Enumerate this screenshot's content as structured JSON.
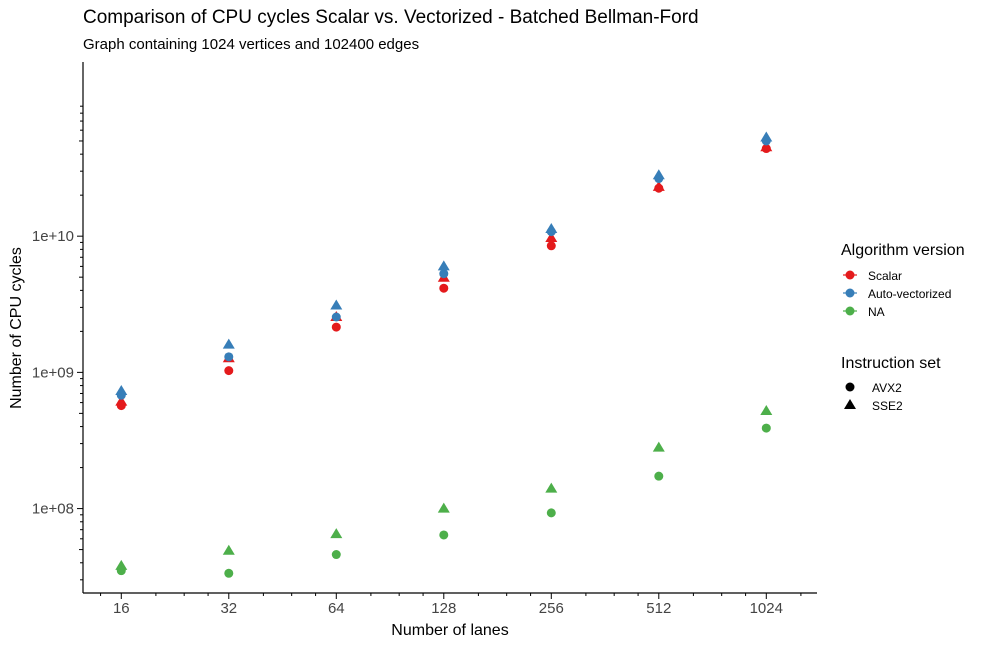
{
  "chart_data": {
    "type": "scatter",
    "title": "Comparison of CPU cycles Scalar vs. Vectorized - Batched Bellman-Ford",
    "subtitle": "Graph containing 1024 vertices and 102400 edges",
    "xlabel": "Number of lanes",
    "ylabel": "Number of CPU cycles",
    "x_scale": "log2",
    "y_scale": "log10",
    "xlim": [
      12.5,
      1420
    ],
    "ylim": [
      24000000,
      190000000000
    ],
    "x_ticks": [
      16,
      32,
      64,
      128,
      256,
      512,
      1024
    ],
    "x_tick_labels": [
      "16",
      "32",
      "64",
      "128",
      "256",
      "512",
      "1024"
    ],
    "y_ticks": [
      100000000,
      1000000000,
      10000000000
    ],
    "y_tick_labels": [
      "1e+08",
      "1e+09",
      "1e+10"
    ],
    "grid": false,
    "legend_position": "right",
    "color_legend": {
      "title": "Algorithm version",
      "entries": [
        {
          "label": "Scalar",
          "color": "#e41a1c"
        },
        {
          "label": "Auto-vectorized",
          "color": "#377eb8"
        },
        {
          "label": "NA",
          "color": "#4daf4a"
        }
      ]
    },
    "shape_legend": {
      "title": "Instruction set",
      "entries": [
        {
          "label": "AVX2",
          "shape": "circle"
        },
        {
          "label": "SSE2",
          "shape": "triangle"
        }
      ]
    },
    "series": [
      {
        "color": "#e41a1c",
        "shape": "circle",
        "x": [
          16,
          32,
          64,
          128,
          256,
          512,
          1024
        ],
        "y": [
          570000000,
          1030000000,
          2150000000,
          4150000000,
          8500000000,
          22500000000,
          44000000000
        ]
      },
      {
        "color": "#e41a1c",
        "shape": "triangle",
        "x": [
          16,
          32,
          64,
          128,
          256,
          512,
          1024
        ],
        "y": [
          610000000,
          1270000000,
          2550000000,
          4950000000,
          9700000000,
          23000000000,
          45000000000
        ]
      },
      {
        "color": "#377eb8",
        "shape": "circle",
        "x": [
          16,
          32,
          64,
          128,
          256,
          512,
          1024
        ],
        "y": [
          680000000,
          1300000000,
          2550000000,
          5300000000,
          10800000000,
          26500000000,
          50000000000
        ]
      },
      {
        "color": "#377eb8",
        "shape": "triangle",
        "x": [
          16,
          32,
          64,
          128,
          256,
          512,
          1024
        ],
        "y": [
          730000000,
          1600000000,
          3100000000,
          6000000000,
          11300000000,
          28000000000,
          53000000000
        ]
      },
      {
        "color": "#4daf4a",
        "shape": "circle",
        "x": [
          16,
          32,
          64,
          128,
          256,
          512,
          1024
        ],
        "y": [
          35000000,
          33500000,
          46000000,
          64000000,
          93000000,
          173000000,
          390000000
        ]
      },
      {
        "color": "#4daf4a",
        "shape": "triangle",
        "x": [
          16,
          32,
          64,
          128,
          256,
          512,
          1024
        ],
        "y": [
          38000000,
          49000000,
          65000000,
          100000000,
          140000000,
          280000000,
          520000000
        ]
      }
    ]
  }
}
